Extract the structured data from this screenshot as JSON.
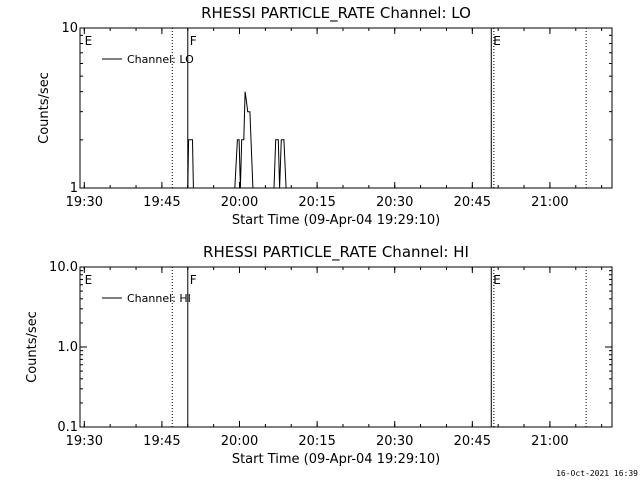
{
  "footer": {
    "timestamp": "16-Oct-2021 16:39"
  },
  "chart_data": [
    {
      "type": "line",
      "title": "RHESSI PARTICLE_RATE Channel: LO",
      "xlabel": "Start Time (09-Apr-04 19:29:10)",
      "ylabel": "Counts/sec",
      "yscale": "log",
      "xlim": [
        "19:29:10",
        "21:12:00"
      ],
      "ylim": [
        1,
        10
      ],
      "x_ticks": [
        "19:30",
        "19:45",
        "20:00",
        "20:15",
        "20:30",
        "20:45",
        "21:00"
      ],
      "y_ticks": [
        "1",
        "10"
      ],
      "legend": {
        "label": "Channel: LO",
        "position": "top-left"
      },
      "markers": [
        {
          "label": "E",
          "time": "19:29:40",
          "style": "solid"
        },
        {
          "label": "F",
          "time": "19:50:00",
          "style": "solid"
        },
        {
          "label": "E",
          "time": "20:48:40",
          "style": "solid"
        }
      ],
      "dotted_lines": [
        "19:47:00",
        "20:49:10",
        "21:07:00"
      ],
      "series": [
        {
          "name": "Channel: LO",
          "points": [
            [
              "19:50:00",
              1
            ],
            [
              "19:50:10",
              2
            ],
            [
              "19:50:55",
              2
            ],
            [
              "19:51:05",
              1
            ],
            [
              "19:59:05",
              1
            ],
            [
              "19:59:35",
              2
            ],
            [
              "19:59:55",
              2
            ],
            [
              "20:00:10",
              1
            ],
            [
              "20:00:25",
              2
            ],
            [
              "20:00:50",
              2
            ],
            [
              "20:01:05",
              4
            ],
            [
              "20:01:20",
              3.5
            ],
            [
              "20:01:35",
              3
            ],
            [
              "20:02:00",
              3
            ],
            [
              "20:02:35",
              1
            ],
            [
              "20:06:40",
              1
            ],
            [
              "20:07:00",
              2
            ],
            [
              "20:07:30",
              2
            ],
            [
              "20:07:45",
              1
            ],
            [
              "20:08:05",
              2
            ],
            [
              "20:08:35",
              2
            ],
            [
              "20:09:00",
              1
            ]
          ]
        }
      ]
    },
    {
      "type": "line",
      "title": "RHESSI PARTICLE_RATE Channel: HI",
      "xlabel": "Start Time (09-Apr-04 19:29:10)",
      "ylabel": "Counts/sec",
      "yscale": "log",
      "xlim": [
        "19:29:10",
        "21:12:00"
      ],
      "ylim": [
        0.1,
        10
      ],
      "x_ticks": [
        "19:30",
        "19:45",
        "20:00",
        "20:15",
        "20:30",
        "20:45",
        "21:00"
      ],
      "y_ticks": [
        "0.1",
        "1.0",
        "10.0"
      ],
      "legend": {
        "label": "Channel: HI",
        "position": "top-left"
      },
      "markers": [
        {
          "label": "E",
          "time": "19:29:40",
          "style": "solid"
        },
        {
          "label": "F",
          "time": "19:50:00",
          "style": "solid"
        },
        {
          "label": "E",
          "time": "20:48:40",
          "style": "solid"
        }
      ],
      "dotted_lines": [
        "19:47:00",
        "20:49:10",
        "21:07:00"
      ],
      "series": [
        {
          "name": "Channel: HI",
          "points": []
        }
      ]
    }
  ]
}
